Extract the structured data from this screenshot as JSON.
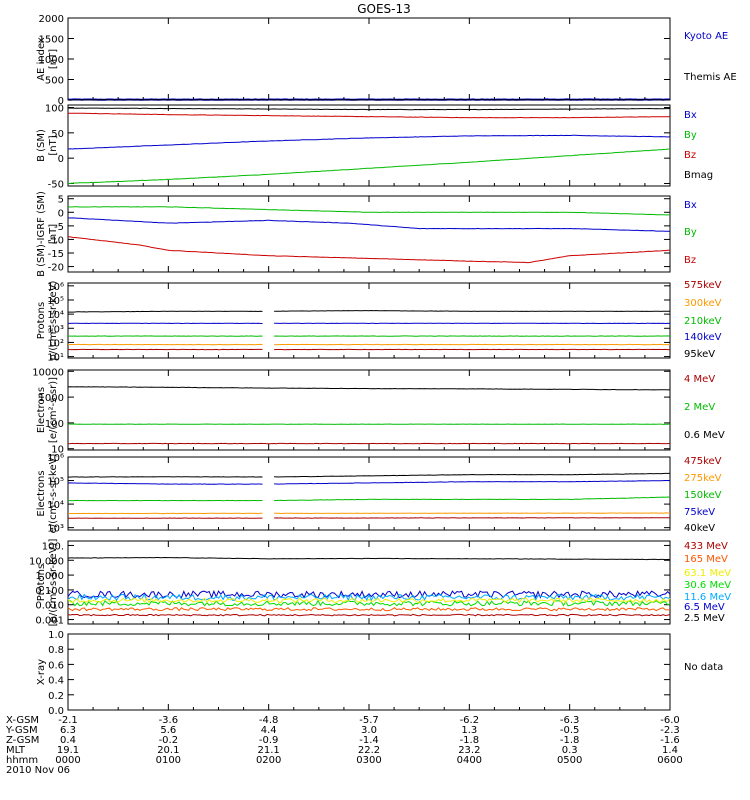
{
  "title": "GOES-13",
  "x_ticks": [
    "0000",
    "0100",
    "0200",
    "0300",
    "0400",
    "0500",
    "0600"
  ],
  "orbit_table": {
    "rows": [
      {
        "label": "X-GSM",
        "values": [
          "-2.1",
          "-3.6",
          "-4.8",
          "-5.7",
          "-6.2",
          "-6.3",
          "-6.0"
        ]
      },
      {
        "label": "Y-GSM",
        "values": [
          "6.3",
          "5.6",
          "4.4",
          "3.0",
          "1.3",
          "-0.5",
          "-2.3"
        ]
      },
      {
        "label": "Z-GSM",
        "values": [
          "0.4",
          "-0.2",
          "-0.9",
          "-1.4",
          "-1.8",
          "-1.8",
          "-1.6"
        ]
      },
      {
        "label": "MLT",
        "values": [
          "19.1",
          "20.1",
          "21.1",
          "22.2",
          "23.2",
          "0.3",
          "1.4"
        ]
      },
      {
        "label": "hhmm",
        "values": [
          "0000",
          "0100",
          "0200",
          "0300",
          "0400",
          "0500",
          "0600"
        ]
      }
    ],
    "date": "2010 Nov 06"
  },
  "chart_data": [
    {
      "id": "ae",
      "type": "line",
      "ylabel": [
        "AE index",
        "[nT]"
      ],
      "ylim": [
        0,
        2000
      ],
      "yscale": "linear",
      "yticks": [
        {
          "v": 0,
          "l": "0"
        },
        {
          "v": 500,
          "l": "500"
        },
        {
          "v": 1000,
          "l": "1000"
        },
        {
          "v": 1500,
          "l": "1500"
        },
        {
          "v": 2000,
          "l": "2000"
        }
      ],
      "legend": [
        {
          "name": "Kyoto AE",
          "color": "#0000cc"
        },
        {
          "name": "Themis AE",
          "color": "#000000"
        }
      ],
      "series": [
        {
          "name": "Kyoto AE",
          "color": "#0000cc",
          "width": 2,
          "x": [
            0,
            6
          ],
          "values": [
            10,
            10
          ]
        },
        {
          "name": "Themis AE",
          "color": "#000000",
          "width": 1,
          "x": [
            0,
            6
          ],
          "values": [
            5,
            5
          ]
        }
      ]
    },
    {
      "id": "bsm",
      "type": "line",
      "ylabel": [
        "B (SM)",
        "[nT]"
      ],
      "ylim": [
        -55,
        105
      ],
      "yscale": "linear",
      "yticks": [
        {
          "v": -50,
          "l": "-50"
        },
        {
          "v": 0,
          "l": "0"
        },
        {
          "v": 50,
          "l": "50"
        },
        {
          "v": 100,
          "l": "100"
        }
      ],
      "legend": [
        {
          "name": "Bx",
          "color": "#0000cc"
        },
        {
          "name": "By",
          "color": "#00bb00"
        },
        {
          "name": "Bz",
          "color": "#cc0000"
        },
        {
          "name": "Bmag",
          "color": "#000000"
        }
      ],
      "series": [
        {
          "name": "Bmag",
          "color": "#000000",
          "x": [
            0,
            1,
            2,
            3,
            4,
            5,
            6
          ],
          "values": [
            99,
            98,
            97,
            96,
            96,
            97,
            98
          ]
        },
        {
          "name": "Bz",
          "color": "#cc0000",
          "x": [
            0,
            1,
            2,
            3,
            4,
            5,
            6
          ],
          "values": [
            89,
            86,
            84,
            82,
            80,
            80,
            82
          ]
        },
        {
          "name": "Bx",
          "color": "#0000cc",
          "x": [
            0,
            1,
            2,
            3,
            4,
            5,
            6
          ],
          "values": [
            18,
            26,
            34,
            40,
            44,
            45,
            42
          ]
        },
        {
          "name": "By",
          "color": "#00bb00",
          "x": [
            0,
            1,
            2,
            3,
            4,
            5,
            6
          ],
          "values": [
            -50,
            -42,
            -32,
            -20,
            -8,
            5,
            18
          ]
        }
      ]
    },
    {
      "id": "bigrf",
      "type": "line",
      "ylabel": [
        "B (SM)-IGRF (SM)",
        "[nT]"
      ],
      "ylim": [
        -22,
        6
      ],
      "yscale": "linear",
      "yticks": [
        {
          "v": -20,
          "l": "-20"
        },
        {
          "v": -15,
          "l": "-15"
        },
        {
          "v": -10,
          "l": "-10"
        },
        {
          "v": -5,
          "l": "-5"
        },
        {
          "v": 0,
          "l": "0"
        },
        {
          "v": 5,
          "l": "5"
        }
      ],
      "legend": [
        {
          "name": "Bx",
          "color": "#0000cc"
        },
        {
          "name": "By",
          "color": "#00bb00"
        },
        {
          "name": "Bz",
          "color": "#cc0000"
        }
      ],
      "series": [
        {
          "name": "By",
          "color": "#00bb00",
          "x": [
            0,
            1,
            2,
            3,
            4,
            5,
            6
          ],
          "values": [
            2,
            2,
            1,
            0,
            0,
            0,
            -1
          ]
        },
        {
          "name": "Bx",
          "color": "#0000cc",
          "x": [
            0,
            1,
            2,
            2.8,
            3.5,
            4,
            5,
            6
          ],
          "values": [
            -2,
            -4,
            -3,
            -4,
            -6,
            -6,
            -6,
            -7
          ]
        },
        {
          "name": "Bz",
          "color": "#cc0000",
          "x": [
            0,
            0.7,
            1,
            2,
            3,
            4,
            4.6,
            5,
            6
          ],
          "values": [
            -9,
            -12,
            -14,
            -16,
            -17,
            -18,
            -18.5,
            -16,
            -14
          ]
        }
      ]
    },
    {
      "id": "protons1",
      "type": "line",
      "ylabel": [
        "Protons",
        "p/(cm²-s-sr-keV)"
      ],
      "ylim": [
        0.9,
        6.2
      ],
      "yscale": "log",
      "yticks": [
        {
          "v": 1,
          "l": "10¹"
        },
        {
          "v": 2,
          "l": "10²"
        },
        {
          "v": 3,
          "l": "10³"
        },
        {
          "v": 4,
          "l": "10⁴"
        },
        {
          "v": 5,
          "l": "10⁵"
        },
        {
          "v": 6,
          "l": "10⁶"
        }
      ],
      "gap": [
        1.95,
        2.05
      ],
      "legend": [
        {
          "name": "575keV",
          "color": "#aa0000"
        },
        {
          "name": "300keV",
          "color": "#ff9900"
        },
        {
          "name": "210keV",
          "color": "#00bb00"
        },
        {
          "name": "140keV",
          "color": "#0000cc"
        },
        {
          "name": "95keV",
          "color": "#000000"
        }
      ],
      "series": [
        {
          "name": "95keV",
          "color": "#000000",
          "x": [
            0,
            1,
            2,
            3,
            4,
            5,
            6
          ],
          "values": [
            4.15,
            4.2,
            4.2,
            4.25,
            4.2,
            4.2,
            4.2
          ]
        },
        {
          "name": "140keV",
          "color": "#0000cc",
          "x": [
            0,
            6
          ],
          "values": [
            3.35,
            3.35
          ]
        },
        {
          "name": "210keV",
          "color": "#00bb00",
          "x": [
            0,
            6
          ],
          "values": [
            2.45,
            2.45
          ]
        },
        {
          "name": "300keV",
          "color": "#ff9900",
          "x": [
            0,
            6
          ],
          "values": [
            1.85,
            1.85
          ]
        },
        {
          "name": "575keV",
          "color": "#aa0000",
          "x": [
            0,
            6
          ],
          "values": [
            1.5,
            1.5
          ]
        }
      ]
    },
    {
      "id": "electrons1",
      "type": "line",
      "ylabel": [
        "Electrons",
        "[e/(cm²-s-sr)]"
      ],
      "ylim": [
        0.95,
        4.05
      ],
      "yscale": "log",
      "yticks": [
        {
          "v": 1,
          "l": "10"
        },
        {
          "v": 2,
          "l": "100"
        },
        {
          "v": 3,
          "l": "1000"
        },
        {
          "v": 4,
          "l": "10000"
        }
      ],
      "legend": [
        {
          "name": "4 MeV",
          "color": "#aa0000"
        },
        {
          "name": "2 MeV",
          "color": "#00bb00"
        },
        {
          "name": "0.6 MeV",
          "color": "#000000"
        }
      ],
      "series": [
        {
          "name": "0.6 MeV",
          "color": "#000000",
          "x": [
            0,
            1,
            2,
            3,
            4,
            5,
            6
          ],
          "values": [
            3.4,
            3.38,
            3.35,
            3.33,
            3.32,
            3.3,
            3.28
          ]
        },
        {
          "name": "2 MeV",
          "color": "#00bb00",
          "x": [
            0,
            6
          ],
          "values": [
            1.95,
            1.95
          ]
        },
        {
          "name": "4 MeV",
          "color": "#aa0000",
          "x": [
            0,
            6
          ],
          "values": [
            1.2,
            1.2
          ]
        }
      ]
    },
    {
      "id": "electrons2",
      "type": "line",
      "ylabel": [
        "Electrons",
        "e/(cm²-s-sr-keV)"
      ],
      "ylim": [
        2.9,
        6.0
      ],
      "yscale": "log",
      "yticks": [
        {
          "v": 3,
          "l": "10³"
        },
        {
          "v": 4,
          "l": "10⁴"
        },
        {
          "v": 5,
          "l": "10⁵"
        },
        {
          "v": 6,
          "l": "10⁶"
        }
      ],
      "gap": [
        1.95,
        2.05
      ],
      "legend": [
        {
          "name": "475keV",
          "color": "#aa0000"
        },
        {
          "name": "275keV",
          "color": "#ff9900"
        },
        {
          "name": "150keV",
          "color": "#00bb00"
        },
        {
          "name": "75keV",
          "color": "#0000cc"
        },
        {
          "name": "40keV",
          "color": "#000000"
        }
      ],
      "series": [
        {
          "name": "40keV",
          "color": "#000000",
          "x": [
            0,
            1,
            2,
            3,
            4,
            5,
            6
          ],
          "values": [
            5.15,
            5.16,
            5.15,
            5.2,
            5.25,
            5.25,
            5.3
          ]
        },
        {
          "name": "75keV",
          "color": "#0000cc",
          "x": [
            0,
            1,
            2,
            3,
            4,
            5,
            6
          ],
          "values": [
            4.9,
            4.85,
            4.85,
            4.9,
            4.95,
            4.95,
            5.0
          ]
        },
        {
          "name": "150keV",
          "color": "#00bb00",
          "x": [
            0,
            1,
            2,
            3,
            4,
            5,
            6
          ],
          "values": [
            4.15,
            4.15,
            4.15,
            4.2,
            4.2,
            4.2,
            4.3
          ]
        },
        {
          "name": "275keV",
          "color": "#ff9900",
          "x": [
            0,
            6
          ],
          "values": [
            3.6,
            3.62
          ]
        },
        {
          "name": "475keV",
          "color": "#aa0000",
          "x": [
            0,
            6
          ],
          "values": [
            3.4,
            3.42
          ]
        }
      ]
    },
    {
      "id": "protons2",
      "type": "line",
      "ylabel": [
        "Protons",
        "[p/(cm²-s-sr-keV)]"
      ],
      "ylim": [
        -3.3,
        2.3
      ],
      "yscale": "log",
      "yticks": [
        {
          "v": -3,
          "l": "0.001"
        },
        {
          "v": -2,
          "l": "0.010"
        },
        {
          "v": -1,
          "l": "0.100"
        },
        {
          "v": 0,
          "l": "1.000"
        },
        {
          "v": 1,
          "l": "10.000"
        },
        {
          "v": 2,
          "l": "100."
        }
      ],
      "legend": [
        {
          "name": "433 MeV",
          "color": "#aa0000"
        },
        {
          "name": "165 MeV",
          "color": "#ff5500"
        },
        {
          "name": "63.1 MeV",
          "color": "#eeee00"
        },
        {
          "name": "30.6 MeV",
          "color": "#00dd00"
        },
        {
          "name": "11.6 MeV",
          "color": "#00aaff"
        },
        {
          "name": "6.5 MeV",
          "color": "#0000cc"
        },
        {
          "name": "2.5 MeV",
          "color": "#000000"
        }
      ],
      "series": [
        {
          "name": "2.5 MeV",
          "color": "#000000",
          "x": [
            0,
            1,
            2,
            3,
            4,
            5,
            6
          ],
          "values": [
            1.15,
            1.18,
            1.1,
            1.12,
            1.1,
            1.08,
            1.05
          ]
        },
        {
          "name": "6.5 MeV",
          "color": "#0000cc",
          "noise": 0.45,
          "x": [
            0,
            6
          ],
          "values": [
            -1.3,
            -1.3
          ]
        },
        {
          "name": "11.6 MeV",
          "color": "#00aaff",
          "noise": 0.4,
          "x": [
            0,
            6
          ],
          "values": [
            -1.5,
            -1.5
          ]
        },
        {
          "name": "30.6 MeV",
          "color": "#00dd00",
          "noise": 0.35,
          "x": [
            0,
            6
          ],
          "values": [
            -1.9,
            -1.9
          ]
        },
        {
          "name": "63.1 MeV",
          "color": "#eeee00",
          "noise": 0.3,
          "x": [
            0,
            6
          ],
          "values": [
            -1.7,
            -1.7
          ]
        },
        {
          "name": "165 MeV",
          "color": "#ff5500",
          "noise": 0.2,
          "x": [
            0,
            6
          ],
          "values": [
            -2.3,
            -2.3
          ]
        },
        {
          "name": "433 MeV",
          "color": "#aa0000",
          "noise": 0.1,
          "x": [
            0,
            6
          ],
          "values": [
            -2.7,
            -2.7
          ]
        }
      ]
    },
    {
      "id": "xray",
      "type": "line",
      "ylabel": [
        "X-ray",
        ""
      ],
      "ylim": [
        0,
        1
      ],
      "yscale": "linear",
      "yticks": [
        {
          "v": 0,
          "l": "0.0"
        },
        {
          "v": 0.2,
          "l": "0.2"
        },
        {
          "v": 0.4,
          "l": "0.4"
        },
        {
          "v": 0.6,
          "l": "0.6"
        },
        {
          "v": 0.8,
          "l": "0.8"
        },
        {
          "v": 1,
          "l": "1.0"
        }
      ],
      "legend": [],
      "nodata": "No data",
      "series": []
    }
  ],
  "colors": {
    "axis": "#000000",
    "background": "#ffffff"
  }
}
